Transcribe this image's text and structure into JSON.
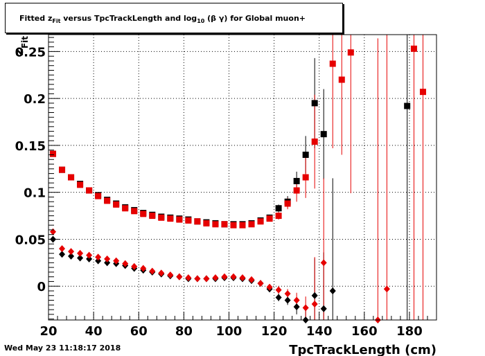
{
  "header": {
    "title": "Fitted  zFit  versus TpcTrackLength and log10 (β γ) for Global muon+",
    "title_parts": {
      "pre": "Fitted  z",
      "sub1": "Fit",
      "mid": "  versus TpcTrackLength and log",
      "sub2": "10",
      "post": " (β γ) for Global muon+"
    }
  },
  "footer": {
    "timestamp": "Wed May 23 11:18:17 2018"
  },
  "chart_data": {
    "type": "scatter",
    "title": "Fitted  zFit  versus TpcTrackLength and log10 (β γ) for Global muon+",
    "xlabel": "TpcTrackLength (cm)",
    "ylabel": "zFit",
    "xlim": [
      20,
      192
    ],
    "ylim": [
      -0.036,
      0.268
    ],
    "x_ticks": [
      20,
      40,
      60,
      80,
      100,
      120,
      140,
      160,
      180
    ],
    "x_tick_labels": [
      "20",
      "40",
      "60",
      "80",
      "100",
      "120",
      "140",
      "160",
      "180"
    ],
    "y_ticks": [
      0,
      0.05,
      0.1,
      0.15,
      0.2,
      0.25
    ],
    "y_tick_labels": [
      "0",
      "0.05",
      "0.1",
      "0.15",
      "0.2",
      "0.25"
    ],
    "grid": true,
    "series": [
      {
        "marker": "square",
        "color": "#000000",
        "points": [
          [
            22,
            0.141,
            0.002
          ],
          [
            26,
            0.124,
            0.002
          ],
          [
            30,
            0.116,
            0.002
          ],
          [
            34,
            0.109,
            0.002
          ],
          [
            38,
            0.102,
            0.002
          ],
          [
            42,
            0.097,
            0.002
          ],
          [
            46,
            0.092,
            0.002
          ],
          [
            50,
            0.088,
            0.002
          ],
          [
            54,
            0.084,
            0.002
          ],
          [
            58,
            0.081,
            0.002
          ],
          [
            62,
            0.078,
            0.002
          ],
          [
            66,
            0.076,
            0.002
          ],
          [
            70,
            0.074,
            0.002
          ],
          [
            74,
            0.073,
            0.002
          ],
          [
            78,
            0.072,
            0.002
          ],
          [
            82,
            0.071,
            0.002
          ],
          [
            86,
            0.069,
            0.002
          ],
          [
            90,
            0.068,
            0.002
          ],
          [
            94,
            0.067,
            0.002
          ],
          [
            98,
            0.066,
            0.002
          ],
          [
            102,
            0.066,
            0.002
          ],
          [
            106,
            0.066,
            0.002
          ],
          [
            110,
            0.067,
            0.002
          ],
          [
            114,
            0.07,
            0.003
          ],
          [
            118,
            0.073,
            0.003
          ],
          [
            122,
            0.083,
            0.004
          ],
          [
            126,
            0.09,
            0.006
          ],
          [
            130,
            0.112,
            0.01
          ],
          [
            134,
            0.14,
            0.02
          ],
          [
            138,
            0.195,
            0.048
          ],
          [
            142,
            0.162,
            0.048
          ],
          [
            179,
            0.192,
            0.3
          ]
        ]
      },
      {
        "marker": "square",
        "color": "#e60000",
        "points": [
          [
            22,
            0.141,
            0.002
          ],
          [
            26,
            0.124,
            0.002
          ],
          [
            30,
            0.116,
            0.002
          ],
          [
            34,
            0.108,
            0.002
          ],
          [
            38,
            0.102,
            0.002
          ],
          [
            42,
            0.096,
            0.002
          ],
          [
            46,
            0.091,
            0.002
          ],
          [
            50,
            0.087,
            0.002
          ],
          [
            54,
            0.083,
            0.002
          ],
          [
            58,
            0.08,
            0.002
          ],
          [
            62,
            0.077,
            0.002
          ],
          [
            66,
            0.075,
            0.002
          ],
          [
            70,
            0.073,
            0.002
          ],
          [
            74,
            0.072,
            0.002
          ],
          [
            78,
            0.071,
            0.002
          ],
          [
            82,
            0.07,
            0.002
          ],
          [
            86,
            0.069,
            0.002
          ],
          [
            90,
            0.067,
            0.002
          ],
          [
            94,
            0.066,
            0.002
          ],
          [
            98,
            0.066,
            0.002
          ],
          [
            102,
            0.065,
            0.002
          ],
          [
            106,
            0.065,
            0.002
          ],
          [
            110,
            0.066,
            0.002
          ],
          [
            114,
            0.069,
            0.003
          ],
          [
            118,
            0.072,
            0.003
          ],
          [
            122,
            0.075,
            0.004
          ],
          [
            126,
            0.088,
            0.006
          ],
          [
            130,
            0.102,
            0.012
          ],
          [
            134,
            0.116,
            0.022
          ],
          [
            138,
            0.154,
            0.05
          ],
          [
            146,
            0.237,
            0.09
          ],
          [
            150,
            0.22,
            0.08
          ],
          [
            154,
            0.249,
            0.15
          ],
          [
            182,
            0.253,
            0.3
          ],
          [
            186,
            0.207,
            0.3
          ]
        ]
      },
      {
        "marker": "diamond",
        "color": "#000000",
        "points": [
          [
            22,
            0.05,
            0.002
          ],
          [
            26,
            0.034,
            0.002
          ],
          [
            30,
            0.032,
            0.002
          ],
          [
            34,
            0.03,
            0.002
          ],
          [
            38,
            0.029,
            0.002
          ],
          [
            42,
            0.027,
            0.002
          ],
          [
            46,
            0.025,
            0.002
          ],
          [
            50,
            0.024,
            0.002
          ],
          [
            54,
            0.022,
            0.002
          ],
          [
            58,
            0.019,
            0.002
          ],
          [
            62,
            0.017,
            0.002
          ],
          [
            66,
            0.015,
            0.002
          ],
          [
            70,
            0.013,
            0.002
          ],
          [
            74,
            0.011,
            0.002
          ],
          [
            78,
            0.01,
            0.002
          ],
          [
            82,
            0.008,
            0.002
          ],
          [
            86,
            0.008,
            0.002
          ],
          [
            90,
            0.008,
            0.002
          ],
          [
            94,
            0.008,
            0.002
          ],
          [
            98,
            0.009,
            0.002
          ],
          [
            102,
            0.009,
            0.002
          ],
          [
            106,
            0.008,
            0.002
          ],
          [
            110,
            0.006,
            0.002
          ],
          [
            114,
            0.003,
            0.003
          ],
          [
            118,
            -0.003,
            0.003
          ],
          [
            122,
            -0.012,
            0.004
          ],
          [
            126,
            -0.015,
            0.005
          ],
          [
            130,
            -0.022,
            0.008
          ],
          [
            134,
            -0.036,
            0.012
          ],
          [
            138,
            -0.01,
            0.04
          ],
          [
            142,
            -0.024,
            0.06
          ],
          [
            146,
            -0.005,
            0.12
          ]
        ]
      },
      {
        "marker": "diamond",
        "color": "#e60000",
        "points": [
          [
            22,
            0.058,
            0.002
          ],
          [
            26,
            0.04,
            0.002
          ],
          [
            30,
            0.037,
            0.002
          ],
          [
            34,
            0.035,
            0.002
          ],
          [
            38,
            0.033,
            0.002
          ],
          [
            42,
            0.031,
            0.002
          ],
          [
            46,
            0.029,
            0.002
          ],
          [
            50,
            0.027,
            0.002
          ],
          [
            54,
            0.024,
            0.002
          ],
          [
            58,
            0.021,
            0.002
          ],
          [
            62,
            0.019,
            0.002
          ],
          [
            66,
            0.016,
            0.002
          ],
          [
            70,
            0.014,
            0.002
          ],
          [
            74,
            0.012,
            0.002
          ],
          [
            78,
            0.01,
            0.002
          ],
          [
            82,
            0.009,
            0.002
          ],
          [
            86,
            0.008,
            0.002
          ],
          [
            90,
            0.008,
            0.002
          ],
          [
            94,
            0.009,
            0.002
          ],
          [
            98,
            0.01,
            0.002
          ],
          [
            102,
            0.01,
            0.002
          ],
          [
            106,
            0.009,
            0.002
          ],
          [
            110,
            0.007,
            0.002
          ],
          [
            114,
            0.003,
            0.003
          ],
          [
            118,
            -0.001,
            0.003
          ],
          [
            122,
            -0.004,
            0.004
          ],
          [
            126,
            -0.008,
            0.005
          ],
          [
            130,
            -0.015,
            0.008
          ],
          [
            134,
            -0.023,
            0.012
          ],
          [
            138,
            -0.019,
            0.05
          ],
          [
            142,
            0.025,
            0.09
          ],
          [
            166,
            -0.036,
            0.3
          ],
          [
            170,
            -0.003,
            0.3
          ]
        ]
      }
    ]
  }
}
